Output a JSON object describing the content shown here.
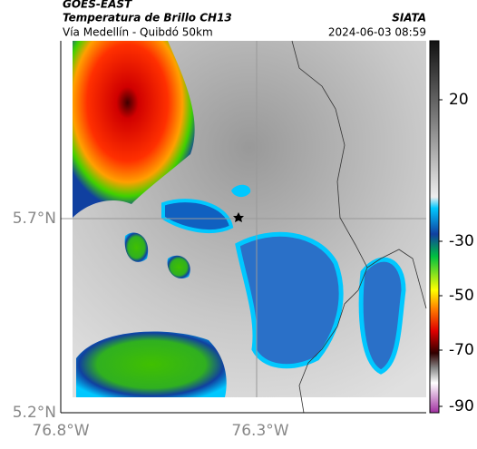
{
  "header": {
    "satellite": "GOES-EAST",
    "product": "Temperatura de Brillo CH13",
    "route": "Vía Medellín - Quibdó 50km",
    "source": "SIATA",
    "datetime": "2024-06-03 08:59"
  },
  "lat_ticks": [
    "5.7°N",
    "5.2°N"
  ],
  "lon_ticks": [
    "76.8°W",
    "76.3°W"
  ],
  "colorbar_ticks": [
    20,
    -30,
    -50,
    -70,
    -90
  ]
}
